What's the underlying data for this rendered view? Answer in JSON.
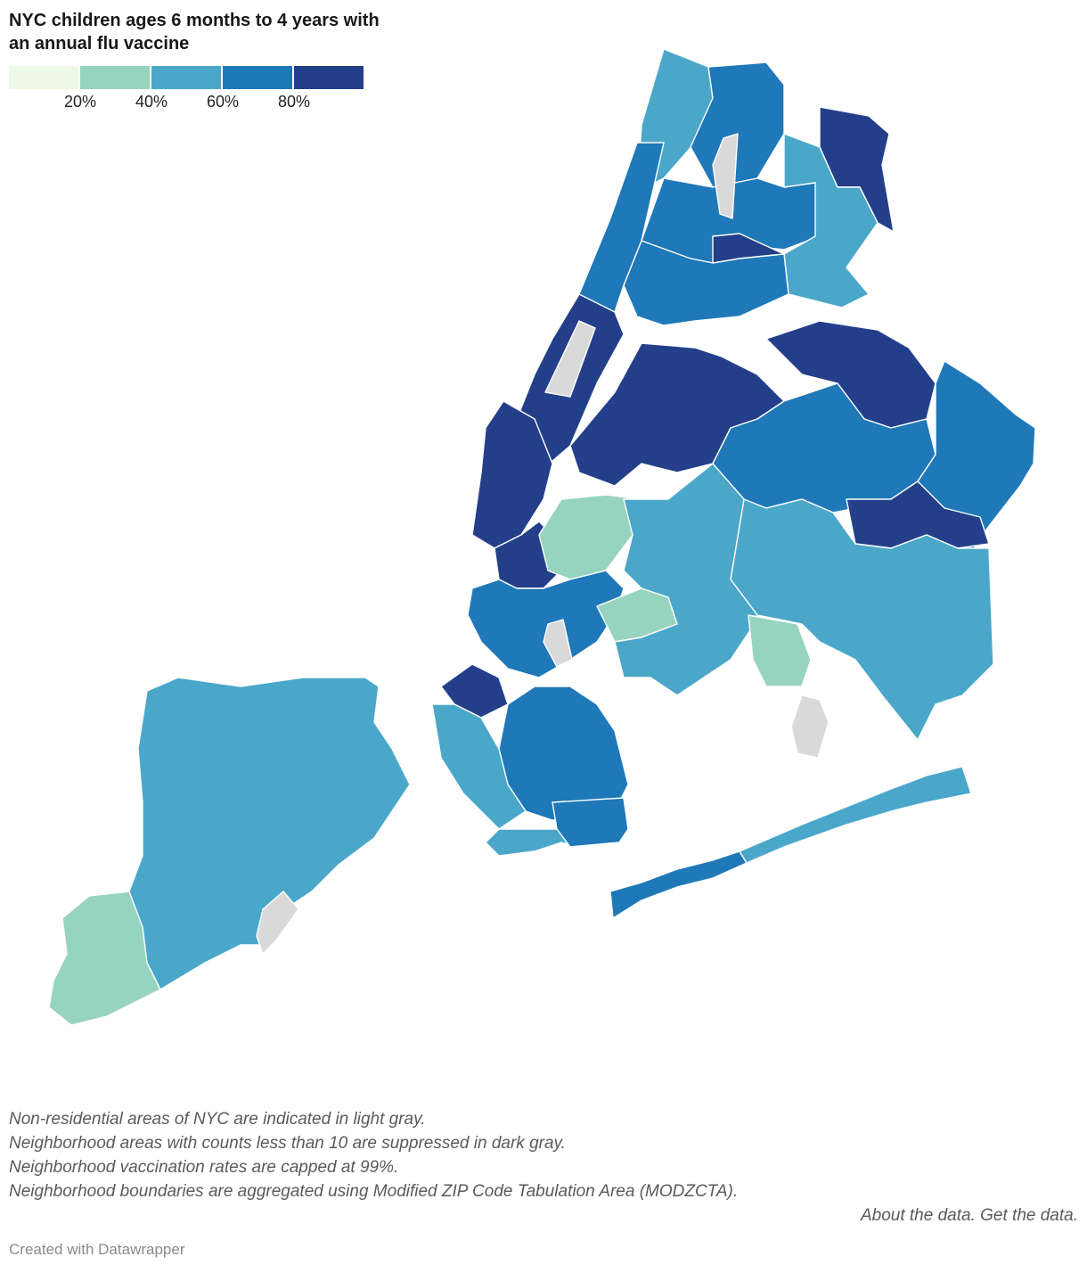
{
  "title": "NYC children ages 6 months to 4 years with an annual flu vaccine",
  "legend": {
    "colors": [
      "#eef8e6",
      "#97d4bf",
      "#4aa7c9",
      "#1f78b8",
      "#243f8a"
    ],
    "ticks": [
      "20%",
      "40%",
      "60%",
      "80%"
    ]
  },
  "map": {
    "colors": {
      "c1": "#eef8e6",
      "c2": "#97d4bf",
      "c3": "#4aa7c9",
      "c4": "#1f78b8",
      "c5": "#243f8a",
      "non_residential": "#d9d9d9",
      "boundary": "#ffffff"
    },
    "regions": [
      {
        "name": "north-bronx-riverdale",
        "level": 3
      },
      {
        "name": "north-bronx-wakefield",
        "level": 4
      },
      {
        "name": "bronx-pelham-bay",
        "level": 5
      },
      {
        "name": "bronx-central",
        "level": 4
      },
      {
        "name": "bronx-soundview",
        "level": 5
      },
      {
        "name": "bronx-throgs-neck",
        "level": 3
      },
      {
        "name": "bronx-south",
        "level": 4
      },
      {
        "name": "manhattan-upper",
        "level": 4
      },
      {
        "name": "manhattan-central",
        "level": 5
      },
      {
        "name": "manhattan-lower",
        "level": 5
      },
      {
        "name": "central-park",
        "level": "non_residential"
      },
      {
        "name": "van-cortlandt-park",
        "level": "non_residential"
      },
      {
        "name": "queens-western",
        "level": 5
      },
      {
        "name": "queens-central",
        "level": 4
      },
      {
        "name": "queens-north-central",
        "level": 5
      },
      {
        "name": "queens-eastern",
        "level": 4
      },
      {
        "name": "queens-south",
        "level": 3
      },
      {
        "name": "queens-far-east",
        "level": 5
      },
      {
        "name": "jfk-airport",
        "level": "non_residential"
      },
      {
        "name": "rockaway-west",
        "level": 4
      },
      {
        "name": "rockaway-east",
        "level": 3
      },
      {
        "name": "brooklyn-north",
        "level": 5
      },
      {
        "name": "brooklyn-northwest",
        "level": 2
      },
      {
        "name": "brooklyn-central",
        "level": 4
      },
      {
        "name": "brooklyn-prospect",
        "level": 2
      },
      {
        "name": "prospect-park",
        "level": "non_residential"
      },
      {
        "name": "brooklyn-southwest",
        "level": 5
      },
      {
        "name": "brooklyn-south-central",
        "level": 3
      },
      {
        "name": "brooklyn-canarsie",
        "level": 2
      },
      {
        "name": "brooklyn-southern",
        "level": 4
      },
      {
        "name": "brooklyn-coney-island",
        "level": 3
      },
      {
        "name": "brooklyn-brighton",
        "level": 4
      },
      {
        "name": "staten-island-north",
        "level": 3
      },
      {
        "name": "staten-island-south",
        "level": 2
      },
      {
        "name": "staten-island-great-kills",
        "level": "non_residential"
      }
    ]
  },
  "notes": [
    "Non-residential areas of NYC are indicated in light gray.",
    "Neighborhood areas with counts less than 10 are suppressed in dark gray.",
    "Neighborhood vaccination rates are capped at 99%.",
    "Neighborhood boundaries are aggregated using Modified ZIP Code Tabulation Area (MODZCTA)."
  ],
  "links": {
    "about": "About the data.",
    "get": "Get the data."
  },
  "credit": "Created with Datawrapper"
}
